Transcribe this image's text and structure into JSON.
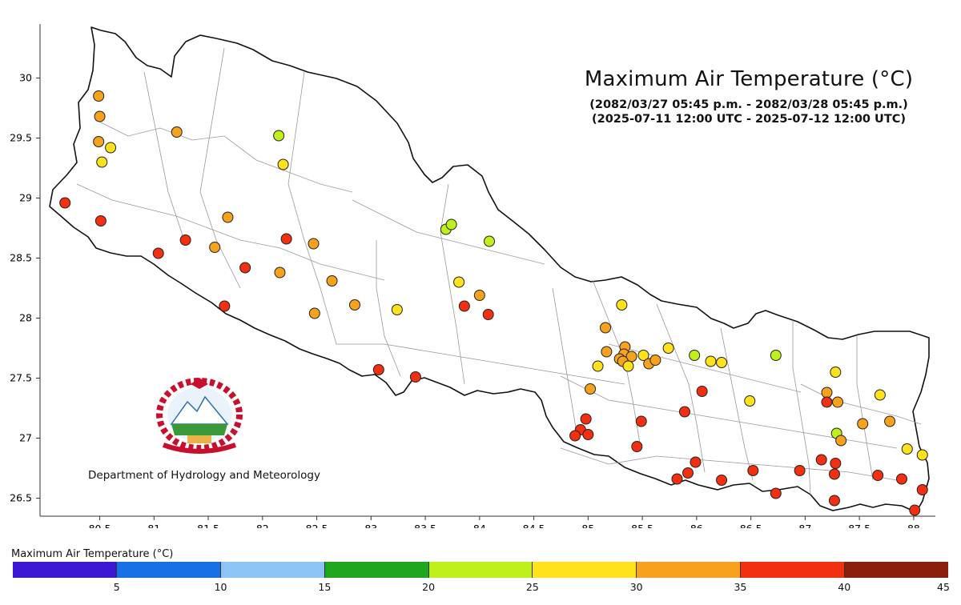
{
  "title": "Maximum Air Temperature (°C)",
  "subtitle_local": "(2082/03/27 05:45 p.m. - 2082/03/28 05:45 p.m.)",
  "subtitle_utc": "(2025-07-11 12:00 UTC - 2025-07-12 12:00 UTC)",
  "department": "Department of Hydrology and Meteorology",
  "legend": {
    "title": "Maximum Air Temperature (°C)",
    "colors": [
      "#3b17d4",
      "#1770e6",
      "#8ec3f5",
      "#1fa81f",
      "#bff01c",
      "#ffe21a",
      "#f7a21c",
      "#f22f10",
      "#8a1d0c"
    ],
    "ticks": [
      "5",
      "10",
      "15",
      "20",
      "25",
      "30",
      "35",
      "40",
      "45"
    ],
    "min": 0,
    "max": 45
  },
  "chart_data": {
    "type": "scatter",
    "xlim": [
      79.95,
      88.2
    ],
    "ylim": [
      26.35,
      30.45
    ],
    "x_ticks": [
      "80.5",
      "81",
      "81.5",
      "82",
      "82.5",
      "83",
      "83.5",
      "84",
      "84.5",
      "85",
      "85.5",
      "86",
      "86.5",
      "87",
      "87.5",
      "88"
    ],
    "y_ticks": [
      "26.5",
      "27",
      "27.5",
      "28",
      "28.5",
      "29",
      "29.5",
      "30"
    ],
    "stations": [
      {
        "lon": 80.49,
        "lat": 29.85,
        "t": 32
      },
      {
        "lon": 80.5,
        "lat": 29.68,
        "t": 32
      },
      {
        "lon": 80.49,
        "lat": 29.47,
        "t": 31
      },
      {
        "lon": 80.6,
        "lat": 29.42,
        "t": 29
      },
      {
        "lon": 80.52,
        "lat": 29.3,
        "t": 29
      },
      {
        "lon": 81.21,
        "lat": 29.55,
        "t": 32
      },
      {
        "lon": 82.15,
        "lat": 29.52,
        "t": 23
      },
      {
        "lon": 82.19,
        "lat": 29.28,
        "t": 28
      },
      {
        "lon": 80.18,
        "lat": 28.96,
        "t": 37
      },
      {
        "lon": 80.51,
        "lat": 28.81,
        "t": 37
      },
      {
        "lon": 81.04,
        "lat": 28.54,
        "t": 37
      },
      {
        "lon": 81.29,
        "lat": 28.65,
        "t": 37
      },
      {
        "lon": 81.56,
        "lat": 28.59,
        "t": 32
      },
      {
        "lon": 81.68,
        "lat": 28.84,
        "t": 32
      },
      {
        "lon": 81.84,
        "lat": 28.42,
        "t": 37
      },
      {
        "lon": 82.16,
        "lat": 28.38,
        "t": 32
      },
      {
        "lon": 82.22,
        "lat": 28.66,
        "t": 37
      },
      {
        "lon": 82.47,
        "lat": 28.62,
        "t": 32
      },
      {
        "lon": 81.65,
        "lat": 28.1,
        "t": 37
      },
      {
        "lon": 82.48,
        "lat": 28.04,
        "t": 32
      },
      {
        "lon": 82.64,
        "lat": 28.31,
        "t": 32
      },
      {
        "lon": 82.85,
        "lat": 28.11,
        "t": 32
      },
      {
        "lon": 83.24,
        "lat": 28.07,
        "t": 28
      },
      {
        "lon": 83.07,
        "lat": 27.57,
        "t": 37
      },
      {
        "lon": 83.41,
        "lat": 27.51,
        "t": 37
      },
      {
        "lon": 83.69,
        "lat": 28.74,
        "t": 23
      },
      {
        "lon": 83.74,
        "lat": 28.78,
        "t": 23
      },
      {
        "lon": 84.09,
        "lat": 28.64,
        "t": 23
      },
      {
        "lon": 83.81,
        "lat": 28.3,
        "t": 28
      },
      {
        "lon": 84.0,
        "lat": 28.19,
        "t": 32
      },
      {
        "lon": 83.86,
        "lat": 28.1,
        "t": 37
      },
      {
        "lon": 84.08,
        "lat": 28.03,
        "t": 37
      },
      {
        "lon": 85.31,
        "lat": 28.11,
        "t": 28
      },
      {
        "lon": 85.16,
        "lat": 27.92,
        "t": 32
      },
      {
        "lon": 85.17,
        "lat": 27.72,
        "t": 32
      },
      {
        "lon": 85.34,
        "lat": 27.76,
        "t": 32
      },
      {
        "lon": 85.33,
        "lat": 27.7,
        "t": 32
      },
      {
        "lon": 85.29,
        "lat": 27.66,
        "t": 32
      },
      {
        "lon": 85.4,
        "lat": 27.68,
        "t": 32
      },
      {
        "lon": 85.32,
        "lat": 27.64,
        "t": 32
      },
      {
        "lon": 85.51,
        "lat": 27.69,
        "t": 28
      },
      {
        "lon": 85.37,
        "lat": 27.6,
        "t": 28
      },
      {
        "lon": 85.56,
        "lat": 27.62,
        "t": 32
      },
      {
        "lon": 85.62,
        "lat": 27.65,
        "t": 32
      },
      {
        "lon": 85.74,
        "lat": 27.75,
        "t": 28
      },
      {
        "lon": 85.09,
        "lat": 27.6,
        "t": 28
      },
      {
        "lon": 85.02,
        "lat": 27.41,
        "t": 32
      },
      {
        "lon": 85.98,
        "lat": 27.69,
        "t": 23
      },
      {
        "lon": 86.13,
        "lat": 27.64,
        "t": 28
      },
      {
        "lon": 86.23,
        "lat": 27.63,
        "t": 28
      },
      {
        "lon": 86.73,
        "lat": 27.69,
        "t": 22
      },
      {
        "lon": 86.05,
        "lat": 27.39,
        "t": 37
      },
      {
        "lon": 86.49,
        "lat": 27.31,
        "t": 28
      },
      {
        "lon": 85.89,
        "lat": 27.22,
        "t": 37
      },
      {
        "lon": 85.49,
        "lat": 27.14,
        "t": 37
      },
      {
        "lon": 84.98,
        "lat": 27.16,
        "t": 37
      },
      {
        "lon": 84.93,
        "lat": 27.07,
        "t": 37
      },
      {
        "lon": 84.88,
        "lat": 27.02,
        "t": 37
      },
      {
        "lon": 85.0,
        "lat": 27.03,
        "t": 37
      },
      {
        "lon": 85.45,
        "lat": 26.93,
        "t": 37
      },
      {
        "lon": 85.99,
        "lat": 26.8,
        "t": 37
      },
      {
        "lon": 85.92,
        "lat": 26.71,
        "t": 37
      },
      {
        "lon": 85.82,
        "lat": 26.66,
        "t": 37
      },
      {
        "lon": 86.23,
        "lat": 26.65,
        "t": 37
      },
      {
        "lon": 86.52,
        "lat": 26.73,
        "t": 37
      },
      {
        "lon": 86.73,
        "lat": 26.54,
        "t": 37
      },
      {
        "lon": 86.95,
        "lat": 26.73,
        "t": 37
      },
      {
        "lon": 87.15,
        "lat": 26.82,
        "t": 37
      },
      {
        "lon": 87.28,
        "lat": 26.79,
        "t": 37
      },
      {
        "lon": 87.27,
        "lat": 26.7,
        "t": 37
      },
      {
        "lon": 87.27,
        "lat": 26.48,
        "t": 37
      },
      {
        "lon": 87.67,
        "lat": 26.69,
        "t": 37
      },
      {
        "lon": 87.89,
        "lat": 26.66,
        "t": 37
      },
      {
        "lon": 88.08,
        "lat": 26.57,
        "t": 37
      },
      {
        "lon": 88.01,
        "lat": 26.4,
        "t": 37
      },
      {
        "lon": 87.2,
        "lat": 27.38,
        "t": 32
      },
      {
        "lon": 87.2,
        "lat": 27.3,
        "t": 37
      },
      {
        "lon": 87.3,
        "lat": 27.3,
        "t": 32
      },
      {
        "lon": 87.28,
        "lat": 27.55,
        "t": 28
      },
      {
        "lon": 87.29,
        "lat": 27.04,
        "t": 23
      },
      {
        "lon": 87.33,
        "lat": 26.98,
        "t": 32
      },
      {
        "lon": 87.53,
        "lat": 27.12,
        "t": 32
      },
      {
        "lon": 87.69,
        "lat": 27.36,
        "t": 28
      },
      {
        "lon": 87.78,
        "lat": 27.14,
        "t": 32
      },
      {
        "lon": 87.94,
        "lat": 26.91,
        "t": 28
      },
      {
        "lon": 88.08,
        "lat": 26.86,
        "t": 28
      }
    ]
  }
}
